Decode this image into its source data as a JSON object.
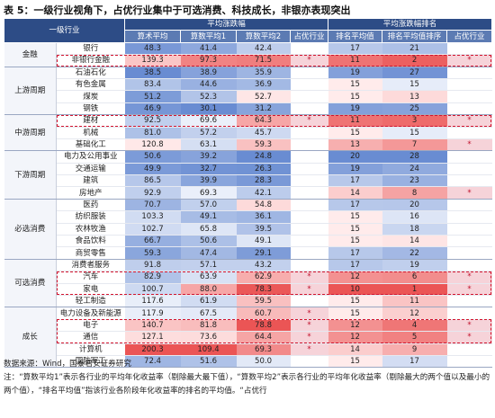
{
  "title": "表 5：一级行业视角下，占优行业集中于可选消费、科技成长，非银亦表现突出",
  "table": {
    "header_groups": [
      "一级行业",
      "平均涨跌幅",
      "平均涨跌幅排名"
    ],
    "columns": [
      "算术平均",
      "算数平均1",
      "算数平均2",
      "占优行业",
      "排名平均值",
      "排名平均值排序",
      "占优行业"
    ],
    "groups": [
      {
        "name": "金融",
        "rows": [
          [
            "银行",
            "48.3",
            "41.4",
            "42.4",
            null,
            "17",
            "21",
            null
          ],
          [
            "非银行金融",
            "139.3",
            "97.3",
            "71.5",
            "*",
            "11",
            "2",
            "*"
          ]
        ]
      },
      {
        "name": "上游周期",
        "rows": [
          [
            "石油石化",
            "38.5",
            "38.9",
            "35.9",
            null,
            "19",
            "27",
            null
          ],
          [
            "有色金属",
            "83.4",
            "44.6",
            "36.9",
            null,
            "15",
            "15",
            null
          ],
          [
            "煤炭",
            "51.2",
            "52.3",
            "52.7",
            null,
            "15",
            "13",
            null
          ],
          [
            "钢铁",
            "46.9",
            "30.1",
            "31.2",
            null,
            "19",
            "25",
            null
          ]
        ]
      },
      {
        "name": "中游周期",
        "rows": [
          [
            "建材",
            "92.5",
            "69.6",
            "64.3",
            "*",
            "11",
            "3",
            "*"
          ],
          [
            "机械",
            "81.0",
            "57.2",
            "45.7",
            null,
            "15",
            "15",
            null
          ],
          [
            "基础化工",
            "120.8",
            "63.1",
            "59.3",
            null,
            "13",
            "7",
            "*"
          ]
        ]
      },
      {
        "name": "下游周期",
        "rows": [
          [
            "电力及公用事业",
            "50.6",
            "39.2",
            "24.8",
            null,
            "20",
            "28",
            null
          ],
          [
            "交通运输",
            "49.9",
            "32.7",
            "26.3",
            null,
            "19",
            "24",
            null
          ],
          [
            "建筑",
            "86.5",
            "39.9",
            "28.3",
            null,
            "17",
            "23",
            null
          ],
          [
            "房地产",
            "92.9",
            "69.3",
            "42.1",
            null,
            "14",
            "8",
            "*"
          ]
        ]
      },
      {
        "name": "必选消费",
        "rows": [
          [
            "医药",
            "70.7",
            "57.0",
            "54.8",
            null,
            "17",
            "20",
            null
          ],
          [
            "纺织服装",
            "103.3",
            "49.1",
            "36.1",
            null,
            "15",
            "16",
            null
          ],
          [
            "农林牧渔",
            "102.7",
            "65.8",
            "39.5",
            null,
            "15",
            "18",
            null
          ],
          [
            "食品饮料",
            "66.7",
            "50.6",
            "49.1",
            null,
            "15",
            "14",
            null
          ],
          [
            "商贸零售",
            "59.3",
            "47.4",
            "29.1",
            null,
            "17",
            "22",
            null
          ]
        ]
      },
      {
        "name": "可选消费",
        "rows": [
          [
            "消费者服务",
            "91.8",
            "57.1",
            "43.2",
            null,
            "17",
            "19",
            null
          ],
          [
            "汽车",
            "82.9",
            "63.9",
            "62.9",
            "*",
            "12",
            "6",
            "*"
          ],
          [
            "家电",
            "100.7",
            "88.0",
            "78.3",
            "*",
            "10",
            "1",
            "*"
          ],
          [
            "轻工制造",
            "117.6",
            "61.9",
            "59.5",
            null,
            "15",
            "11",
            null
          ]
        ]
      },
      {
        "name": "成长",
        "rows": [
          [
            "电力设备及新能源",
            "117.9",
            "67.5",
            "60.7",
            "*",
            "15",
            "12",
            null
          ],
          [
            "电子",
            "140.7",
            "81.8",
            "78.8",
            "*",
            "12",
            "4",
            "*"
          ],
          [
            "通信",
            "127.1",
            "73.6",
            "64.4",
            "*",
            "12",
            "5",
            "*"
          ],
          [
            "计算机",
            "200.3",
            "109.4",
            "69.3",
            "*",
            "14",
            "9",
            null
          ],
          [
            "国防军工",
            "72.4",
            "51.6",
            "50.0",
            null,
            "15",
            "17",
            null
          ]
        ]
      }
    ]
  },
  "notes": [
    "数据来源：Wind，国泰君安证券研究",
    "注：“算数平均1”表示各行业的平均年化收益率（剔除最大最下值），“算数平均2”表示各行业的平均年化收益率（剔除最大的两个值以及最小的两个值），“排名平均值”指该行业各阶段年化收益率的排名的平均值。“占优行"
  ]
}
